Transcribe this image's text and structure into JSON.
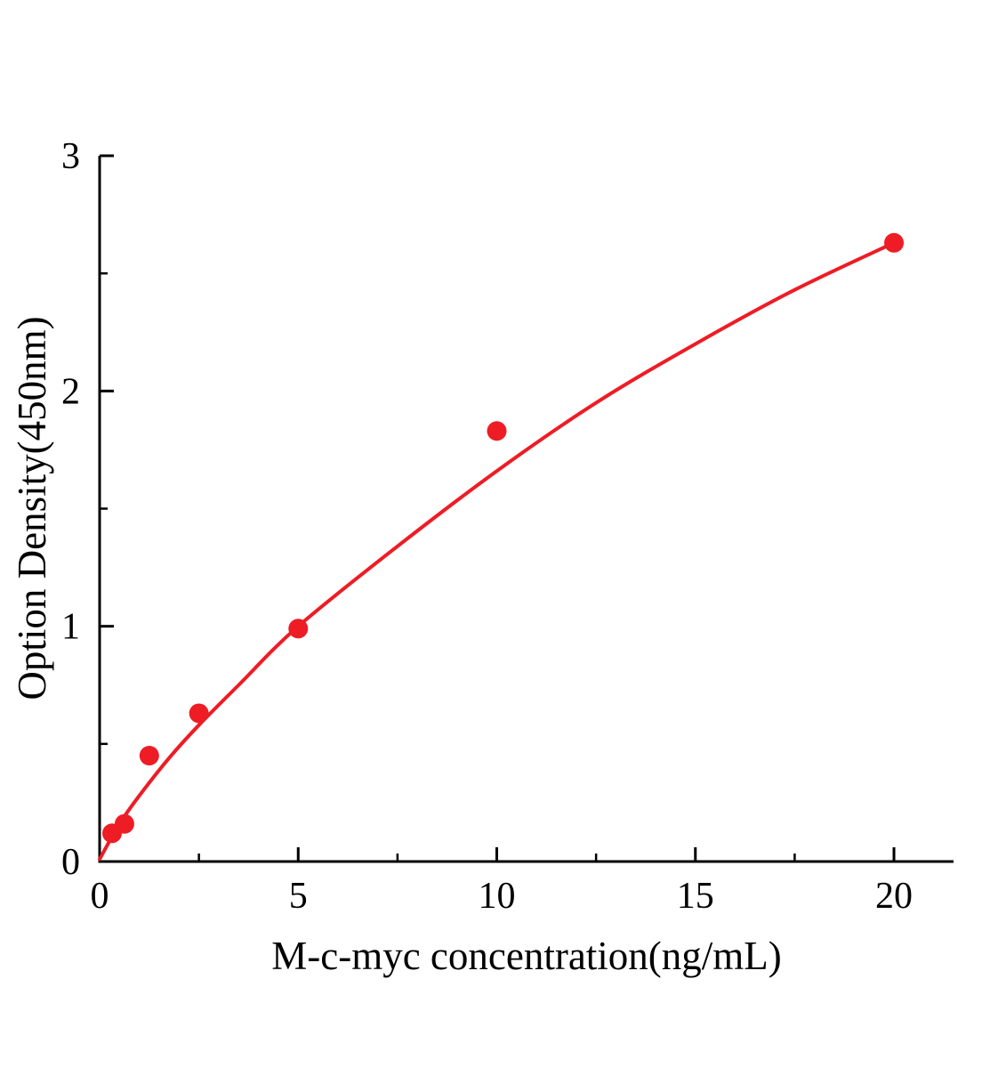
{
  "figure": {
    "background": "#ffffff"
  },
  "chart_data": {
    "type": "scatter",
    "title": "",
    "xlabel": "M-c-myc concentration(ng/mL)",
    "ylabel": "Option Density(450nm)",
    "xlim": [
      0,
      21.5
    ],
    "ylim": [
      0,
      3
    ],
    "x_ticks": [
      0,
      5,
      10,
      15,
      20
    ],
    "y_ticks": [
      0,
      1,
      2,
      3
    ],
    "x_minor_ticks": [
      2.5,
      7.5,
      12.5,
      17.5
    ],
    "y_minor_ticks": [
      0.5,
      1.5,
      2.5
    ],
    "axis_color": "#000000",
    "accent_color": "#ee1c25",
    "grid": false,
    "legend": "none",
    "series": [
      {
        "name": "fit-curve",
        "type": "line",
        "color": "#ee1c25",
        "stroke_width": 4,
        "points": [
          [
            0,
            0.01
          ],
          [
            0.5,
            0.16
          ],
          [
            1,
            0.28
          ],
          [
            1.75,
            0.44
          ],
          [
            2.5,
            0.58
          ],
          [
            3.5,
            0.75
          ],
          [
            5,
            1.0
          ],
          [
            7.5,
            1.34
          ],
          [
            10,
            1.66
          ],
          [
            12.5,
            1.95
          ],
          [
            15,
            2.2
          ],
          [
            17.5,
            2.43
          ],
          [
            20,
            2.63
          ]
        ]
      },
      {
        "name": "standards",
        "type": "scatter",
        "color": "#ee1c25",
        "marker": "circle",
        "marker_radius": 11,
        "points": [
          [
            0.313,
            0.12
          ],
          [
            0.625,
            0.16
          ],
          [
            1.25,
            0.45
          ],
          [
            2.5,
            0.63
          ],
          [
            5,
            0.99
          ],
          [
            10,
            1.83
          ],
          [
            20,
            2.63
          ]
        ]
      }
    ]
  }
}
